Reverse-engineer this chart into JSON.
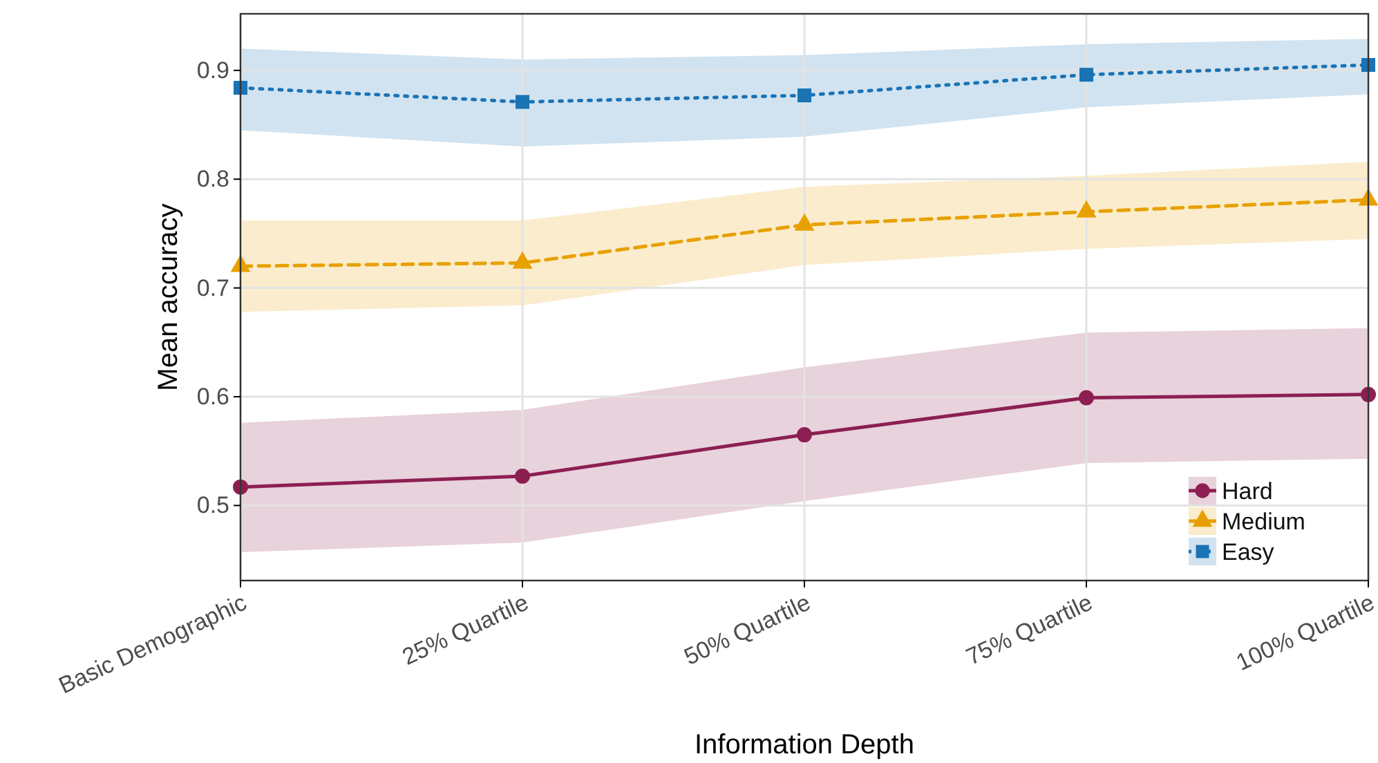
{
  "chart_data": {
    "type": "line",
    "xlabel": "Information Depth",
    "ylabel": "Mean accuracy",
    "categories": [
      "Basic Demographic",
      "25% Quartile",
      "50% Quartile",
      "75% Quartile",
      "100% Quartile"
    ],
    "ylim": [
      0.431,
      0.952
    ],
    "yticks": [
      0.5,
      0.6,
      0.7,
      0.8,
      0.9
    ],
    "grid": true,
    "legend": "bottom right",
    "series": [
      {
        "name": "Hard",
        "color": "#8c1f52",
        "marker": "circle",
        "line_style": "solid",
        "values": [
          0.517,
          0.527,
          0.565,
          0.599,
          0.602
        ],
        "lower": [
          0.457,
          0.466,
          0.504,
          0.539,
          0.543
        ],
        "upper": [
          0.576,
          0.588,
          0.627,
          0.659,
          0.663
        ]
      },
      {
        "name": "Medium",
        "color": "#e8a000",
        "marker": "triangle",
        "line_style": "dashed",
        "values": [
          0.72,
          0.723,
          0.758,
          0.77,
          0.781
        ],
        "lower": [
          0.678,
          0.684,
          0.721,
          0.736,
          0.745
        ],
        "upper": [
          0.762,
          0.762,
          0.793,
          0.803,
          0.816
        ]
      },
      {
        "name": "Easy",
        "color": "#1a73b5",
        "marker": "square",
        "line_style": "dotted",
        "values": [
          0.884,
          0.871,
          0.877,
          0.896,
          0.905
        ],
        "lower": [
          0.845,
          0.83,
          0.839,
          0.866,
          0.878
        ],
        "upper": [
          0.92,
          0.91,
          0.914,
          0.924,
          0.929
        ]
      }
    ]
  }
}
